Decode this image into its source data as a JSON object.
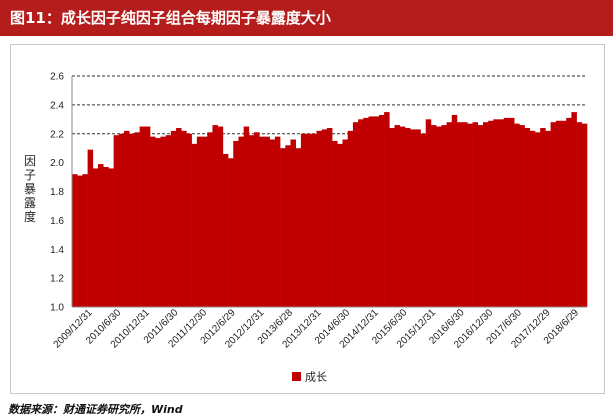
{
  "header": {
    "title": "图11：成长因子纯因子组合每期因子暴露度大小"
  },
  "source": {
    "text": "数据来源：财通证券研究所，Wind"
  },
  "colors": {
    "title_bg": "#b51c1c",
    "bar": "#c00000",
    "grid": "#333333"
  },
  "chart_data": {
    "type": "bar",
    "title": "",
    "xlabel": "",
    "ylabel": "因子暴露度",
    "ylim": [
      1.0,
      2.6
    ],
    "yticks": [
      "1.0",
      "1.2",
      "1.4",
      "1.6",
      "1.8",
      "2.0",
      "2.2",
      "2.4",
      "2.6"
    ],
    "gridlines": [
      2.2,
      2.4,
      2.6
    ],
    "grid_style": "dashed",
    "legend": "bottom-center",
    "xtick_labels": [
      "2009/12/31",
      "2010/6/30",
      "2010/12/31",
      "2011/6/30",
      "2011/12/30",
      "2012/6/29",
      "2012/12/31",
      "2013/6/28",
      "2013/12/31",
      "2014/6/30",
      "2014/12/31",
      "2015/6/30",
      "2015/12/31",
      "2016/6/30",
      "2016/12/30",
      "2017/6/30",
      "2017/12/29",
      "2018/6/29"
    ],
    "series": [
      {
        "name": "成长",
        "values": [
          1.92,
          1.91,
          1.92,
          2.09,
          1.96,
          1.99,
          1.97,
          1.96,
          2.19,
          2.2,
          2.22,
          2.2,
          2.21,
          2.25,
          2.25,
          2.18,
          2.17,
          2.18,
          2.19,
          2.22,
          2.24,
          2.22,
          2.2,
          2.13,
          2.18,
          2.18,
          2.21,
          2.26,
          2.25,
          2.06,
          2.03,
          2.15,
          2.18,
          2.25,
          2.19,
          2.21,
          2.18,
          2.18,
          2.16,
          2.18,
          2.1,
          2.12,
          2.16,
          2.1,
          2.2,
          2.2,
          2.2,
          2.22,
          2.23,
          2.24,
          2.15,
          2.13,
          2.16,
          2.22,
          2.28,
          2.3,
          2.31,
          2.32,
          2.32,
          2.33,
          2.35,
          2.24,
          2.26,
          2.25,
          2.24,
          2.23,
          2.23,
          2.2,
          2.3,
          2.26,
          2.25,
          2.26,
          2.28,
          2.33,
          2.28,
          2.28,
          2.27,
          2.28,
          2.26,
          2.28,
          2.29,
          2.3,
          2.3,
          2.31,
          2.31,
          2.27,
          2.26,
          2.24,
          2.22,
          2.21,
          2.24,
          2.22,
          2.28,
          2.29,
          2.29,
          2.31,
          2.35,
          2.28,
          2.27
        ]
      }
    ]
  }
}
